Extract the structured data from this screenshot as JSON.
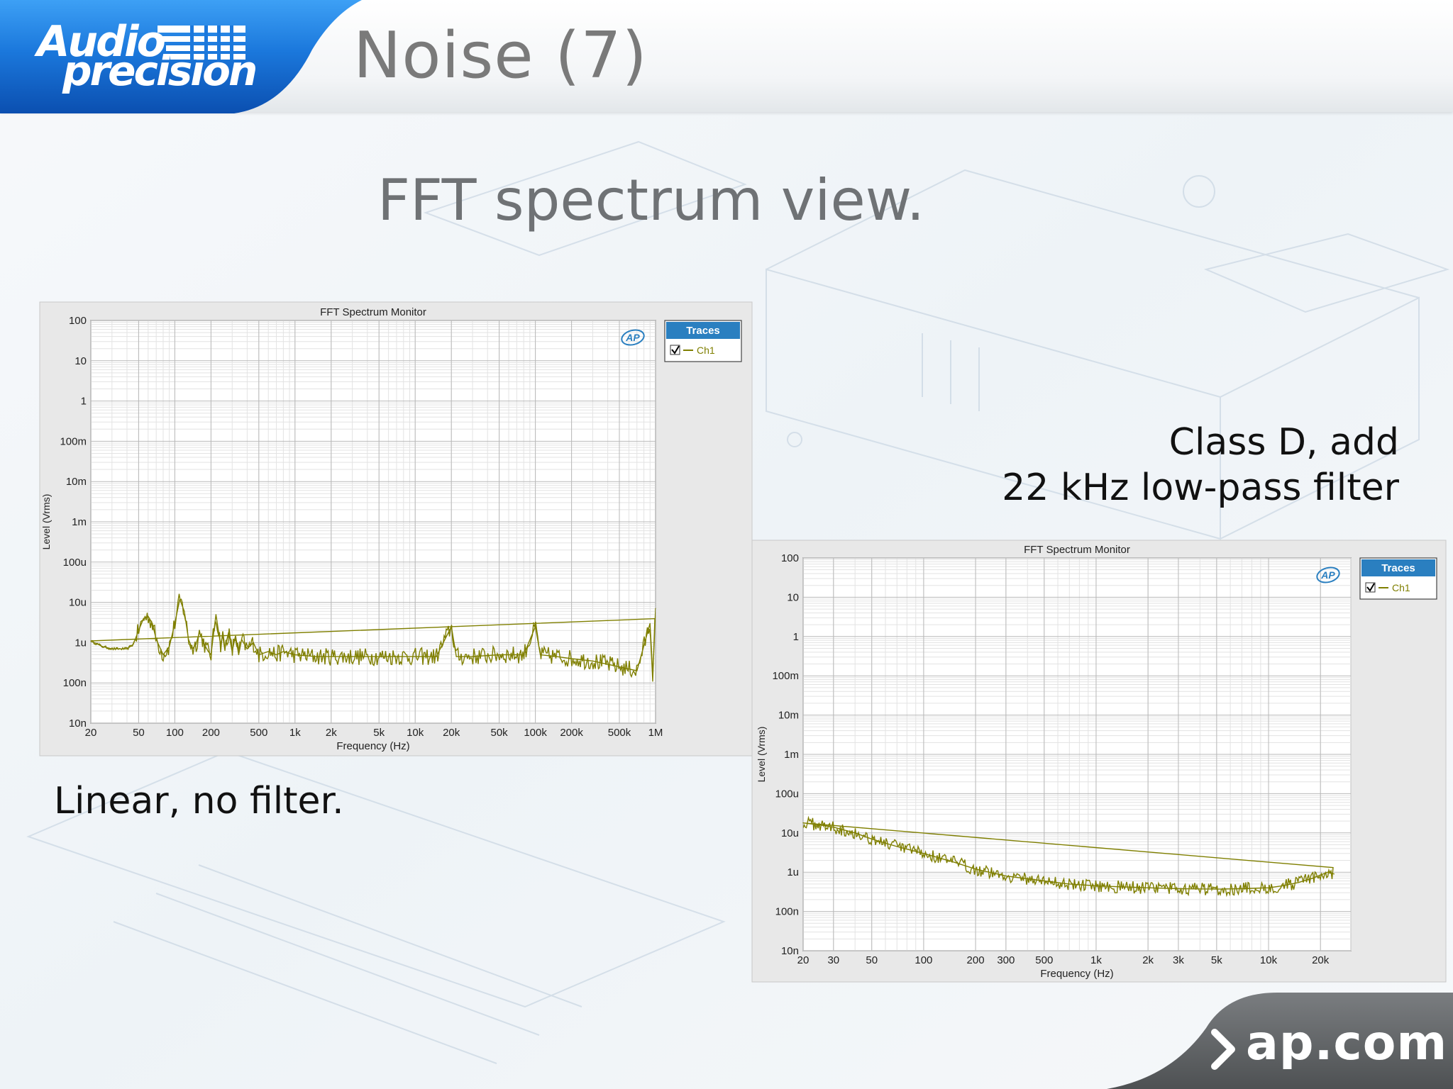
{
  "slide": {
    "title": "Noise (7)",
    "subtitle": "FFT spectrum view.",
    "caption_left": "Linear, no filter.",
    "caption_right_line1": "Class D, add",
    "caption_right_line2": "22 kHz low-pass filter",
    "footer_link": "ap.com"
  },
  "logo": {
    "line1": "Audio",
    "line2": "precision"
  },
  "colors": {
    "brand_blue": "#1a73d6",
    "trace": "#7f7f00",
    "legend_header": "#2a7fc0",
    "plot_bg": "#ffffff",
    "panel_bg": "#e8e8e8",
    "footer_gray": "#5f6264"
  },
  "chart_data": [
    {
      "type": "line",
      "title": "FFT Spectrum Monitor",
      "xlabel": "Frequency (Hz)",
      "ylabel": "Level (Vrms)",
      "x_scale": "log",
      "y_scale": "log",
      "xlim": [
        20,
        1000000
      ],
      "ylim": [
        1e-08,
        100
      ],
      "x_ticks": [
        20,
        50,
        100,
        200,
        500,
        1000,
        2000,
        5000,
        10000,
        20000,
        50000,
        100000,
        200000,
        500000,
        1000000
      ],
      "x_tick_labels": [
        "20",
        "50",
        "100",
        "200",
        "500",
        "1k",
        "2k",
        "5k",
        "10k",
        "20k",
        "50k",
        "100k",
        "200k",
        "500k",
        "1M"
      ],
      "y_ticks": [
        100,
        10,
        1,
        0.1,
        0.01,
        0.001,
        0.0001,
        1e-05,
        1e-06,
        1e-07,
        1e-08
      ],
      "y_tick_labels": [
        "100",
        "10",
        "1",
        "100m",
        "10m",
        "1m",
        "100u",
        "10u",
        "1u",
        "100n",
        "10n"
      ],
      "grid": true,
      "legend": {
        "title": "Traces",
        "placement": "right",
        "entries": [
          "Ch1"
        ],
        "checked": [
          true
        ]
      },
      "series": [
        {
          "name": "Ch1",
          "color": "#7f7f00",
          "x": [
            20,
            25,
            30,
            35,
            40,
            45,
            50,
            55,
            60,
            65,
            70,
            80,
            90,
            100,
            110,
            120,
            130,
            140,
            150,
            160,
            170,
            180,
            190,
            200,
            220,
            240,
            250,
            260,
            280,
            300,
            320,
            340,
            360,
            400,
            450,
            500,
            600,
            700,
            800,
            1000,
            1500,
            2000,
            3000,
            5000,
            10000,
            15000,
            20000,
            22000,
            30000,
            50000,
            80000,
            100000,
            110000,
            150000,
            200000,
            300000,
            500000,
            700000,
            900000,
            950000,
            1000000
          ],
          "y": [
            1.1e-06,
            8e-07,
            7e-07,
            7e-07,
            7e-07,
            9e-07,
            2e-06,
            4e-06,
            4.5e-06,
            3e-06,
            1.2e-06,
            5e-07,
            8e-07,
            3e-06,
            1.2e-05,
            6e-06,
            1.2e-06,
            7e-07,
            9e-07,
            1.8e-06,
            1.2e-06,
            8e-07,
            6e-07,
            5e-07,
            5e-06,
            9e-07,
            1.5e-06,
            7e-07,
            1.8e-06,
            6e-07,
            1.5e-06,
            5e-07,
            1.2e-06,
            7e-07,
            1e-06,
            5e-07,
            6e-07,
            5e-07,
            6e-07,
            5e-07,
            4.5e-07,
            4.5e-07,
            4.5e-07,
            4.5e-07,
            4.5e-07,
            4.5e-07,
            2.5e-06,
            4.5e-07,
            4.5e-07,
            5e-07,
            5e-07,
            2.5e-06,
            5e-07,
            4.5e-07,
            4e-07,
            3.5e-07,
            2.5e-07,
            2e-07,
            3e-06,
            1.5e-07,
            7e-06
          ]
        }
      ]
    },
    {
      "type": "line",
      "title": "FFT Spectrum Monitor",
      "xlabel": "Frequency (Hz)",
      "ylabel": "Level (Vrms)",
      "x_scale": "log",
      "y_scale": "log",
      "xlim": [
        20,
        30000
      ],
      "ylim": [
        1e-08,
        100
      ],
      "x_ticks": [
        20,
        30,
        50,
        100,
        200,
        300,
        500,
        1000,
        2000,
        3000,
        5000,
        10000,
        20000
      ],
      "x_tick_labels": [
        "20",
        "30",
        "50",
        "100",
        "200",
        "300",
        "500",
        "1k",
        "2k",
        "3k",
        "5k",
        "10k",
        "20k"
      ],
      "y_ticks": [
        100,
        10,
        1,
        0.1,
        0.01,
        0.001,
        0.0001,
        1e-05,
        1e-06,
        1e-07,
        1e-08
      ],
      "y_tick_labels": [
        "100",
        "10",
        "1",
        "100m",
        "10m",
        "1m",
        "100u",
        "10u",
        "1u",
        "100n",
        "10n"
      ],
      "grid": true,
      "legend": {
        "title": "Traces",
        "placement": "right",
        "entries": [
          "Ch1"
        ],
        "checked": [
          true
        ]
      },
      "series": [
        {
          "name": "Ch1",
          "color": "#7f7f00",
          "x": [
            20,
            25,
            30,
            40,
            50,
            70,
            100,
            150,
            200,
            300,
            500,
            700,
            1000,
            1500,
            2000,
            3000,
            5000,
            7000,
            10000,
            12000,
            15000,
            18000,
            20000,
            22000,
            24000
          ],
          "y": [
            1.8e-05,
            1.6e-05,
            1.4e-05,
            1e-05,
            7e-06,
            4.5e-06,
            3e-06,
            1.8e-06,
            1.2e-06,
            8e-07,
            6e-07,
            5e-07,
            4.5e-07,
            4.2e-07,
            4e-07,
            3.8e-07,
            3.7e-07,
            3.8e-07,
            4e-07,
            4.5e-07,
            5.5e-07,
            7e-07,
            8.5e-07,
            1e-06,
            9e-07
          ]
        }
      ]
    }
  ]
}
